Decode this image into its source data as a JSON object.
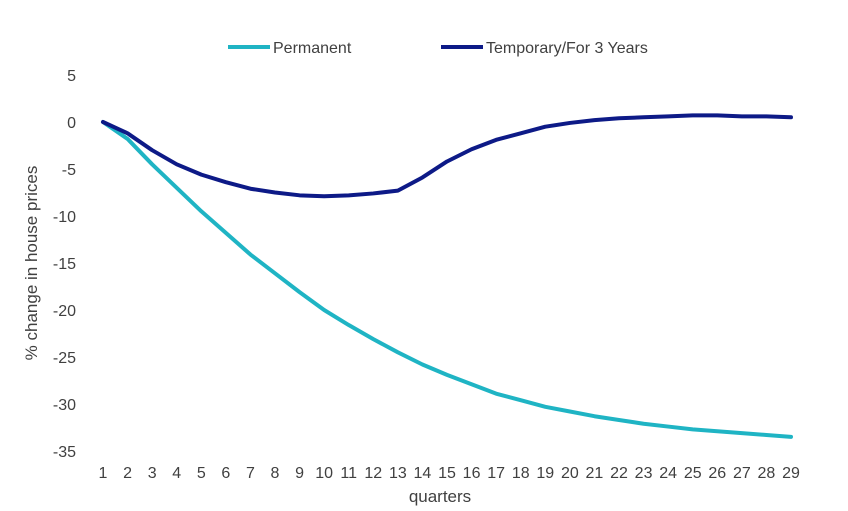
{
  "chart_data": {
    "type": "line",
    "title": "",
    "xlabel": "quarters",
    "ylabel": "% change in house prices",
    "ylim": [
      -35,
      5
    ],
    "yticks": [
      5,
      0,
      -5,
      -10,
      -15,
      -20,
      -25,
      -30,
      -35
    ],
    "x": [
      1,
      2,
      3,
      4,
      5,
      6,
      7,
      8,
      9,
      10,
      11,
      12,
      13,
      14,
      15,
      16,
      17,
      18,
      19,
      20,
      21,
      22,
      23,
      24,
      25,
      26,
      27,
      28,
      29
    ],
    "grid": false,
    "legend_position": "top",
    "series": [
      {
        "name": "Permanent",
        "color": "#1fb4c4",
        "values": [
          0,
          -1.8,
          -4.5,
          -7.0,
          -9.5,
          -11.8,
          -14.1,
          -16.1,
          -18.1,
          -20.0,
          -21.6,
          -23.1,
          -24.5,
          -25.8,
          -26.9,
          -27.9,
          -28.9,
          -29.6,
          -30.3,
          -30.8,
          -31.3,
          -31.7,
          -32.1,
          -32.4,
          -32.7,
          -32.9,
          -33.1,
          -33.3,
          -33.5
        ]
      },
      {
        "name": "Temporary/For 3 Years",
        "color": "#0d1a87",
        "values": [
          0,
          -1.2,
          -3.0,
          -4.5,
          -5.6,
          -6.4,
          -7.1,
          -7.5,
          -7.8,
          -7.9,
          -7.8,
          -7.6,
          -7.3,
          -5.9,
          -4.2,
          -2.9,
          -1.9,
          -1.2,
          -0.5,
          -0.1,
          0.2,
          0.4,
          0.5,
          0.6,
          0.7,
          0.7,
          0.6,
          0.6,
          0.5
        ]
      }
    ]
  }
}
